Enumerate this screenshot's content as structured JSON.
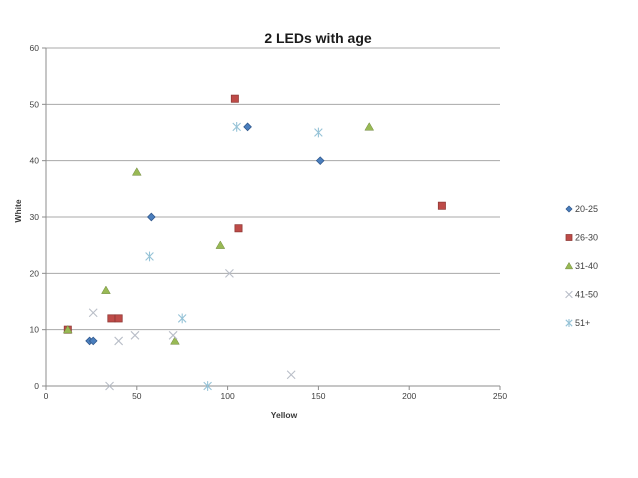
{
  "chart_data": {
    "type": "scatter",
    "title": "2 LEDs with age",
    "xlabel": "Yellow",
    "ylabel": "White",
    "xlim": [
      0,
      250
    ],
    "ylim": [
      0,
      60
    ],
    "x_ticks": [
      0,
      50,
      100,
      150,
      200,
      250
    ],
    "y_ticks": [
      0,
      10,
      20,
      30,
      40,
      50,
      60
    ],
    "grid": "horizontal",
    "legend_position": "right",
    "axis_color": "#8c8c8c",
    "grid_color": "#a8a8a8",
    "text_color": "#404040",
    "series": [
      {
        "name": "20-25",
        "marker": "diamond",
        "color": "#4a7ebd",
        "border": "#31588c",
        "points": [
          [
            24,
            8
          ],
          [
            26,
            8
          ],
          [
            58,
            30
          ],
          [
            111,
            46
          ],
          [
            151,
            40
          ]
        ]
      },
      {
        "name": "26-30",
        "marker": "square",
        "color": "#be4b48",
        "border": "#8e3835",
        "points": [
          [
            12,
            10
          ],
          [
            36,
            12
          ],
          [
            40,
            12
          ],
          [
            104,
            51
          ],
          [
            106,
            28
          ],
          [
            218,
            32
          ]
        ]
      },
      {
        "name": "31-40",
        "marker": "triangle",
        "color": "#98b954",
        "border": "#71893f",
        "points": [
          [
            12,
            10
          ],
          [
            33,
            17
          ],
          [
            50,
            38
          ],
          [
            71,
            8
          ],
          [
            96,
            25
          ],
          [
            178,
            46
          ]
        ]
      },
      {
        "name": "41-50",
        "marker": "x",
        "color": "#b9bec8",
        "border": "#b9bec8",
        "points": [
          [
            26,
            13
          ],
          [
            35,
            0
          ],
          [
            40,
            8
          ],
          [
            49,
            9
          ],
          [
            70,
            9
          ],
          [
            101,
            20
          ],
          [
            135,
            2
          ]
        ]
      },
      {
        "name": "51+",
        "marker": "star",
        "color": "#96c3d7",
        "border": "#96c3d7",
        "points": [
          [
            57,
            23
          ],
          [
            75,
            12
          ],
          [
            89,
            0
          ],
          [
            105,
            46
          ],
          [
            150,
            45
          ]
        ]
      }
    ]
  }
}
